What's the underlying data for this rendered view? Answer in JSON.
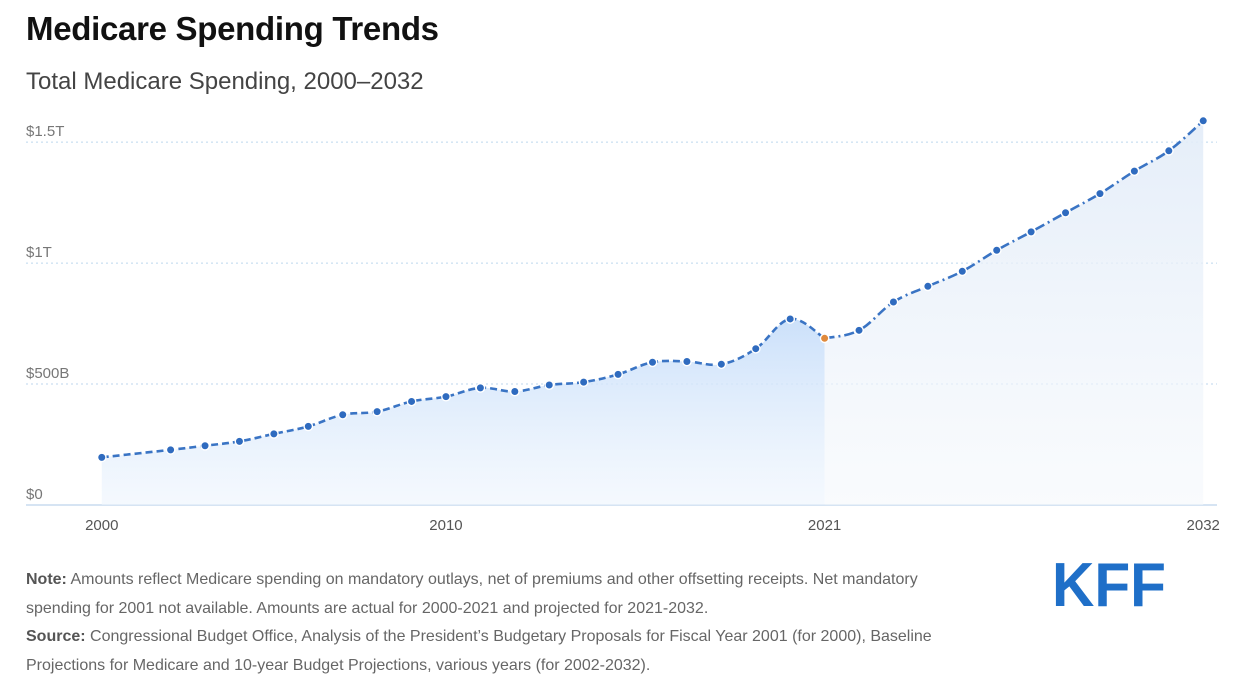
{
  "header": {
    "title": "Medicare Spending Trends",
    "subtitle": "Total Medicare Spending, 2000–2032"
  },
  "notes": {
    "note_label": "Note:",
    "note_text": "Amounts reflect Medicare spending on mandatory outlays, net of premiums and other offsetting receipts. Net mandatory spending for 2001 not available. Amounts are actual for 2000-2021 and projected for 2021-2032.",
    "source_label": "Source:",
    "source_text": "Congressional Budget Office, Analysis of the President’s Budgetary Proposals for Fiscal Year 2001 (for 2000), Baseline Projections for Medicare and 10-year Budget Projections, various years (for 2002-2032)."
  },
  "logo": {
    "text": "KFF",
    "color": "#1f6fc8"
  },
  "colors": {
    "line": "#3a74c4",
    "marker": "#2f6bbf",
    "highlight_marker": "#e08a3c",
    "area_top": "#cfe3fb",
    "grid": "#bcd6ee",
    "axis": "#c8dcef"
  },
  "chart_data": {
    "type": "area",
    "title": "Total Medicare Spending, 2000–2032",
    "xlabel": "",
    "ylabel": "",
    "xlim": [
      1999.6,
      2032.4
    ],
    "ylim": [
      0,
      1550
    ],
    "y_unit": "billions of dollars",
    "x_ticks": [
      {
        "value": 2000,
        "label": "2000"
      },
      {
        "value": 2010,
        "label": "2010"
      },
      {
        "value": 2021,
        "label": "2021"
      },
      {
        "value": 2032,
        "label": "2032"
      }
    ],
    "y_ticks": [
      {
        "value": 0,
        "label": "$0"
      },
      {
        "value": 500,
        "label": "$500B"
      },
      {
        "value": 1000,
        "label": "$1T"
      },
      {
        "value": 1500,
        "label": "$1.5T"
      }
    ],
    "grid": true,
    "series": [
      {
        "values": [
          {
            "x": 2000,
            "y": 197
          },
          {
            "x": 2002,
            "y": 228
          },
          {
            "x": 2003,
            "y": 245
          },
          {
            "x": 2004,
            "y": 263
          },
          {
            "x": 2005,
            "y": 294
          },
          {
            "x": 2006,
            "y": 325
          },
          {
            "x": 2007,
            "y": 373
          },
          {
            "x": 2008,
            "y": 386
          },
          {
            "x": 2009,
            "y": 428
          },
          {
            "x": 2010,
            "y": 448
          },
          {
            "x": 2011,
            "y": 484
          },
          {
            "x": 2012,
            "y": 469
          },
          {
            "x": 2013,
            "y": 496
          },
          {
            "x": 2014,
            "y": 508
          },
          {
            "x": 2015,
            "y": 540
          },
          {
            "x": 2016,
            "y": 590
          },
          {
            "x": 2017,
            "y": 593
          },
          {
            "x": 2018,
            "y": 582
          },
          {
            "x": 2019,
            "y": 646
          },
          {
            "x": 2020,
            "y": 769
          },
          {
            "x": 2021,
            "y": 689
          },
          {
            "x": 2022,
            "y": 722
          },
          {
            "x": 2023,
            "y": 839
          },
          {
            "x": 2024,
            "y": 904
          },
          {
            "x": 2025,
            "y": 966
          },
          {
            "x": 2026,
            "y": 1053
          },
          {
            "x": 2027,
            "y": 1129
          },
          {
            "x": 2028,
            "y": 1208
          },
          {
            "x": 2029,
            "y": 1287
          },
          {
            "x": 2030,
            "y": 1380
          },
          {
            "x": 2031,
            "y": 1464
          },
          {
            "x": 2032,
            "y": 1588
          }
        ]
      }
    ],
    "actual_through": 2021,
    "highlight_x": 2021,
    "legend": "none"
  }
}
